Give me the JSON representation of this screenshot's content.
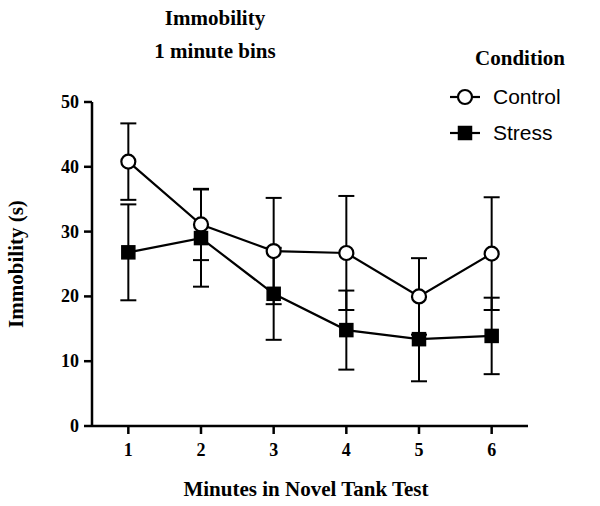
{
  "chart_data": {
    "type": "line",
    "title": "Immobility",
    "subtitle": "1 minute bins",
    "x_label": "Minutes in Novel Tank Test",
    "y_label": "Immobility (s)",
    "legend_title": "Condition",
    "legend": "top-right",
    "x": [
      1,
      2,
      3,
      4,
      5,
      6
    ],
    "xlim": [
      0.5,
      6.5
    ],
    "xticks": [
      1,
      2,
      3,
      4,
      5,
      6
    ],
    "ylim": [
      0,
      50
    ],
    "yticks": [
      0,
      10,
      20,
      30,
      40,
      50
    ],
    "grid": false,
    "series": [
      {
        "name": "Control",
        "color": "#000000",
        "marker": "open-circle",
        "line_style": "solid",
        "values": [
          40.8,
          31.1,
          27.0,
          26.7,
          20.0,
          26.6
        ],
        "errors": [
          5.9,
          5.5,
          8.2,
          8.8,
          5.9,
          8.7
        ]
      },
      {
        "name": "Stress",
        "color": "#000000",
        "marker": "square",
        "line_style": "solid",
        "values": [
          26.8,
          29.0,
          20.4,
          14.8,
          13.4,
          13.9
        ],
        "errors": [
          7.4,
          7.5,
          7.1,
          6.1,
          6.5,
          5.9
        ]
      }
    ]
  }
}
